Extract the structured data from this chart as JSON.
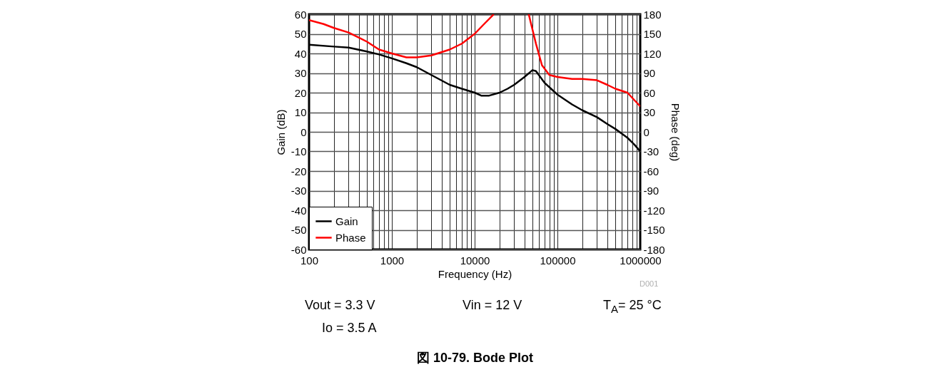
{
  "chart_data": {
    "type": "line",
    "title": "図 10-79. Bode Plot",
    "xlabel": "Frequency (Hz)",
    "ylabel": "Gain (dB)",
    "y2label": "Phase (deg)",
    "log": "x",
    "grid": true,
    "legend": "bottom left",
    "xlim": [
      100,
      1000000
    ],
    "xticks": [
      100,
      {
        "value": 200,
        "label": null
      },
      {
        "value": 300,
        "label": null
      },
      {
        "value": 400,
        "label": null
      },
      {
        "value": 500,
        "label": null
      },
      {
        "value": 600,
        "label": null
      },
      {
        "value": 700,
        "label": null
      },
      {
        "value": 800,
        "label": null
      },
      {
        "value": 900,
        "label": null
      },
      1000,
      {
        "value": 2000,
        "label": null
      },
      {
        "value": 3000,
        "label": null
      },
      {
        "value": 4000,
        "label": null
      },
      {
        "value": 5000,
        "label": null
      },
      {
        "value": 6000,
        "label": null
      },
      {
        "value": 7000,
        "label": null
      },
      {
        "value": 8000,
        "label": null
      },
      {
        "value": 9000,
        "label": null
      },
      10000,
      {
        "value": 20000,
        "label": null
      },
      {
        "value": 30000,
        "label": null
      },
      {
        "value": 40000,
        "label": null
      },
      {
        "value": 50000,
        "label": null
      },
      {
        "value": 60000,
        "label": null
      },
      {
        "value": 70000,
        "label": null
      },
      {
        "value": 80000,
        "label": null
      },
      {
        "value": 90000,
        "label": null
      },
      100000,
      {
        "value": 200000,
        "label": null
      },
      {
        "value": 300000,
        "label": null
      },
      {
        "value": 400000,
        "label": null
      },
      {
        "value": 500000,
        "label": null
      },
      {
        "value": 600000,
        "label": null
      },
      {
        "value": 700000,
        "label": null
      },
      {
        "value": 800000,
        "label": null
      },
      {
        "value": 900000,
        "label": null
      },
      1000000
    ],
    "ylim": [
      -60,
      60
    ],
    "yticks": [
      -60,
      -50,
      -40,
      -30,
      -20,
      -10,
      0,
      10,
      20,
      30,
      40,
      50,
      60
    ],
    "y2lim": [
      -180,
      180
    ],
    "y2ticks": [
      -180,
      -150,
      -120,
      -90,
      -60,
      -30,
      0,
      30,
      60,
      90,
      120,
      150,
      180
    ],
    "series": [
      {
        "name": "Gain",
        "color": "#000000",
        "x": [
          100,
          200,
          300,
          500,
          700,
          1000,
          1500,
          2000,
          3000,
          5000,
          7000,
          10000,
          12000,
          15000,
          20000,
          25000,
          30000,
          40000,
          50000,
          55000,
          70000,
          100000,
          150000,
          200000,
          300000,
          400000,
          500000,
          700000,
          850000,
          1000000
        ],
        "values": [
          44.5,
          43.5,
          43,
          41,
          39.5,
          37.5,
          35,
          33,
          29,
          24,
          22,
          20,
          18.5,
          18.5,
          20,
          22,
          24,
          28,
          31.5,
          31,
          25,
          19,
          14,
          11,
          7.5,
          4,
          1.5,
          -3,
          -6.5,
          -10
        ]
      },
      {
        "name": "Phase",
        "color": "#ff0000",
        "axis": "y2",
        "x": [
          100,
          150,
          200,
          300,
          500,
          700,
          1000,
          1500,
          2000,
          3000,
          5000,
          7000,
          10000,
          13000,
          17000,
          25000,
          45000,
          55000,
          65000,
          80000,
          100000,
          150000,
          200000,
          300000,
          400000,
          500000,
          700000,
          1000000
        ],
        "values": [
          171,
          165,
          159,
          152,
          138,
          126,
          120,
          114,
          114,
          117,
          126,
          135,
          150,
          165,
          180,
          null,
          180,
          135,
          102,
          87,
          84,
          81,
          81,
          79,
          72,
          66,
          60,
          39
        ]
      }
    ],
    "annotations": [
      "D001",
      "Vout = 3.3 V",
      "Vin = 12 V",
      "T$_{A}$= 25 °C",
      "Io = 3.5 A"
    ]
  }
}
